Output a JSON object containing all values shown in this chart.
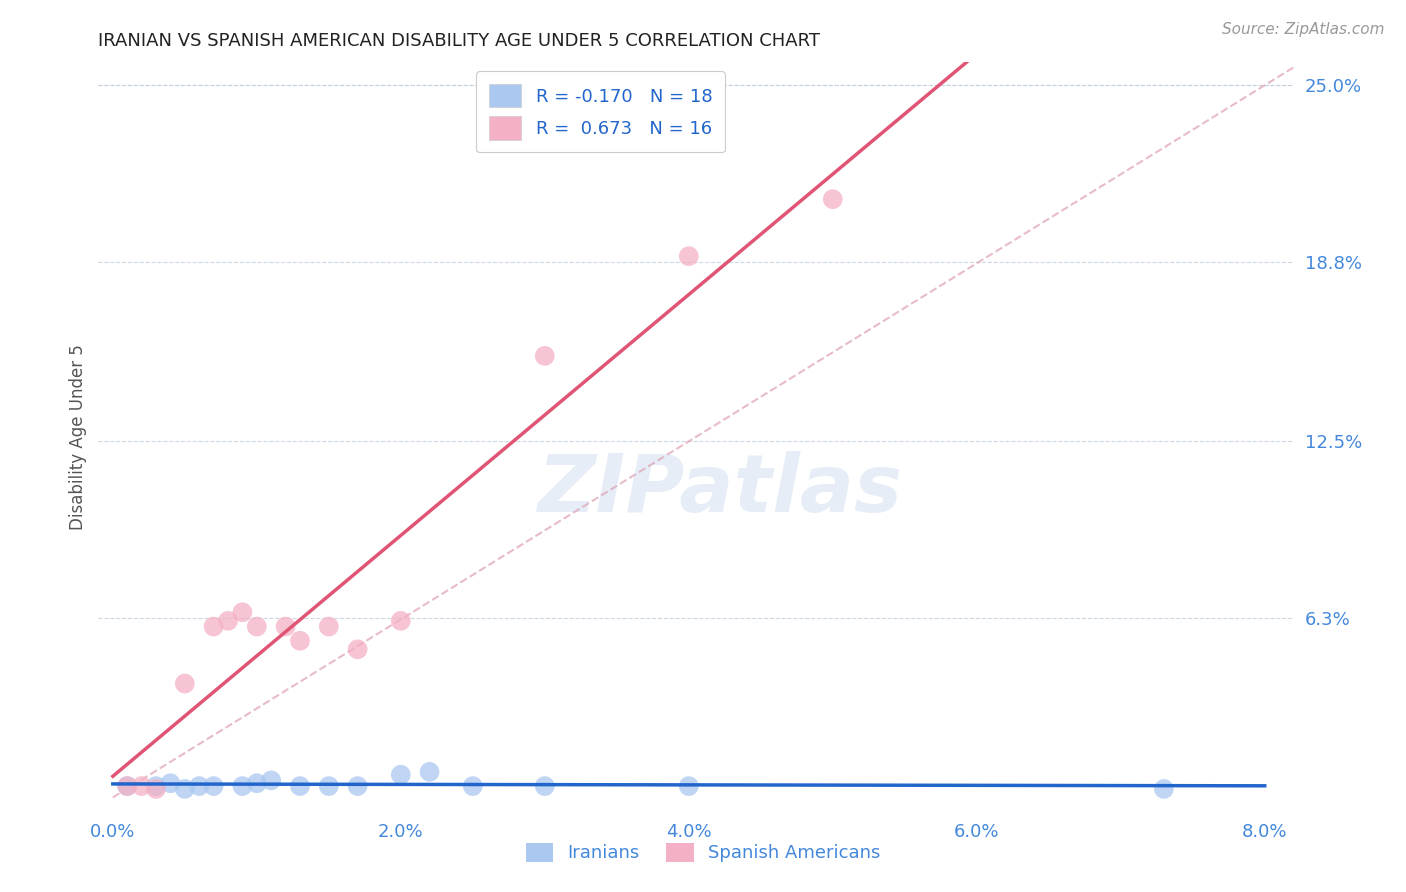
{
  "title": "IRANIAN VS SPANISH AMERICAN DISABILITY AGE UNDER 5 CORRELATION CHART",
  "source": "Source: ZipAtlas.com",
  "ylabel": "Disability Age Under 5",
  "watermark": "ZIPatlas",
  "iranian_color": "#aac8f0",
  "spanish_color": "#f4b0c4",
  "iranian_line_color": "#2266cc",
  "spanish_line_color": "#e05575",
  "diagonal_color": "#dda0b0",
  "background_color": "#ffffff",
  "grid_color": "#c0cfe0",
  "title_color": "#222222",
  "axis_color": "#4488dd",
  "ytick_labels": [
    "6.3%",
    "12.5%",
    "18.8%",
    "25.0%"
  ],
  "ytick_values": [
    0.063,
    0.125,
    0.188,
    0.25
  ],
  "xtick_labels": [
    "0.0%",
    "2.0%",
    "4.0%",
    "6.0%",
    "8.0%"
  ],
  "xtick_values": [
    0.0,
    0.02,
    0.04,
    0.06,
    0.08
  ],
  "xlim": [
    -0.001,
    0.082
  ],
  "ylim": [
    -0.005,
    0.258
  ],
  "legend_labels": [
    "Iranians",
    "Spanish Americans"
  ],
  "iranian_x": [
    0.001,
    0.003,
    0.004,
    0.005,
    0.006,
    0.007,
    0.009,
    0.01,
    0.011,
    0.013,
    0.015,
    0.017,
    0.02,
    0.022,
    0.025,
    0.03,
    0.04,
    0.073
  ],
  "iranian_y": [
    0.004,
    0.004,
    0.005,
    0.003,
    0.004,
    0.004,
    0.004,
    0.005,
    0.006,
    0.004,
    0.004,
    0.004,
    0.008,
    0.009,
    0.004,
    0.004,
    0.004,
    0.003
  ],
  "spanish_x": [
    0.001,
    0.002,
    0.003,
    0.005,
    0.007,
    0.008,
    0.009,
    0.01,
    0.012,
    0.013,
    0.015,
    0.017,
    0.02,
    0.03,
    0.04,
    0.05
  ],
  "spanish_y": [
    0.004,
    0.004,
    0.003,
    0.04,
    0.06,
    0.062,
    0.065,
    0.06,
    0.06,
    0.055,
    0.06,
    0.052,
    0.062,
    0.155,
    0.19,
    0.21
  ],
  "r_iranian": -0.17,
  "n_iranian": 18,
  "r_spanish": 0.673,
  "n_spanish": 16
}
